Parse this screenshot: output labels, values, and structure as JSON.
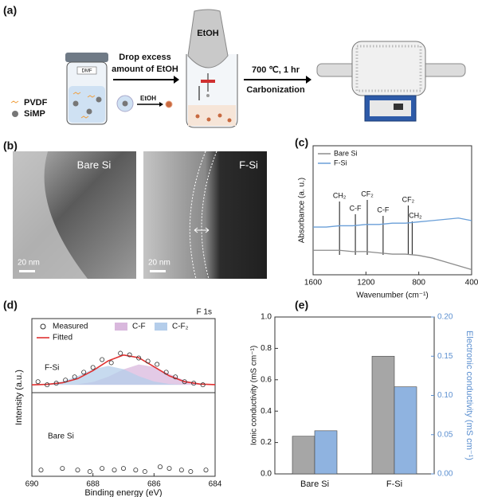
{
  "panel_labels": [
    "(a)",
    "(b)",
    "(c)",
    "(d)",
    "(e)"
  ],
  "diagram": {
    "vial": "DMF",
    "legend_pvdf": "PVDF",
    "legend_simp": "SiMP",
    "step1_line1": "Drop excess",
    "step1_line2": "amount of EtOH",
    "small_etoh": "EtOH",
    "funnel": "EtOH",
    "step2_line1": "700 ℃, 1 hr",
    "step2_line2": "Carbonization"
  },
  "tem": [
    {
      "label": "Bare Si",
      "scale": "20 nm"
    },
    {
      "label": "F-Si",
      "scale": "20 nm"
    }
  ],
  "chart_data": [
    {
      "type": "line",
      "xlabel": "Wavenumber (cm⁻¹)",
      "ylabel": "Absorbance (a. u.)",
      "xlim": [
        1600,
        400
      ],
      "xticks": [
        1600,
        1200,
        800,
        400
      ],
      "ylim": [
        0,
        1
      ],
      "x": [
        1600,
        1500,
        1400,
        1300,
        1200,
        1100,
        1000,
        900,
        800,
        700,
        600,
        500,
        400
      ],
      "series": [
        {
          "name": "Bare Si",
          "color": "#8c8c8c",
          "values": [
            0.19,
            0.19,
            0.19,
            0.18,
            0.18,
            0.17,
            0.16,
            0.16,
            0.15,
            0.13,
            0.1,
            0.07,
            0.04
          ]
        },
        {
          "name": "F-Si",
          "color": "#6a9fd8",
          "values": [
            0.37,
            0.37,
            0.38,
            0.38,
            0.39,
            0.39,
            0.4,
            0.4,
            0.41,
            0.42,
            0.43,
            0.44,
            0.42
          ]
        }
      ],
      "annotations": [
        {
          "x": 1400,
          "text": "CH₂"
        },
        {
          "x": 1280,
          "text": "C-F"
        },
        {
          "x": 1190,
          "text": "CF₂"
        },
        {
          "x": 1070,
          "text": "C-F"
        },
        {
          "x": 880,
          "text": "CF₂"
        },
        {
          "x": 850,
          "text": "CH₂"
        }
      ],
      "legend": "upper left"
    },
    {
      "type": "xps",
      "xlabel": "Binding energy (eV)",
      "ylabel": "Intensity (a.u.)",
      "annotation": "F 1s",
      "panel_texts": [
        "F-Si",
        "Bare Si"
      ],
      "xlim": [
        690,
        684
      ],
      "xticks": [
        690,
        688,
        686,
        684
      ],
      "ylim": [
        0,
        1
      ],
      "series": [
        {
          "name": "Measured",
          "style": "markers",
          "color": "#333333",
          "x": [
            689.8,
            689.5,
            689.2,
            688.9,
            688.6,
            688.3,
            688.0,
            687.7,
            687.4,
            687.1,
            686.8,
            686.5,
            686.2,
            685.9,
            685.6,
            685.3,
            685.0,
            684.7,
            684.4,
            689.7,
            689.0,
            688.5,
            688.1,
            687.7,
            687.3,
            687.0,
            686.6,
            686.3,
            685.8,
            685.5,
            685.1,
            684.8,
            684.3
          ],
          "values": [
            0.6,
            0.58,
            0.59,
            0.61,
            0.63,
            0.66,
            0.69,
            0.74,
            0.72,
            0.78,
            0.77,
            0.75,
            0.73,
            0.71,
            0.66,
            0.63,
            0.6,
            0.59,
            0.58,
            0.04,
            0.05,
            0.04,
            0.03,
            0.05,
            0.04,
            0.05,
            0.04,
            0.03,
            0.06,
            0.05,
            0.04,
            0.03,
            0.04
          ]
        },
        {
          "name": "C-F",
          "style": "area",
          "color": "#d9b8dd",
          "x": [
            690,
            689.5,
            689,
            688.5,
            688,
            687.5,
            687,
            686.5,
            686,
            685.5,
            685,
            684.5,
            684
          ],
          "values": [
            0.58,
            0.58,
            0.581,
            0.584,
            0.598,
            0.631,
            0.678,
            0.709,
            0.694,
            0.649,
            0.608,
            0.588,
            0.581
          ]
        },
        {
          "name": "C-F₂",
          "style": "area",
          "color": "#b4cdea",
          "x": [
            690,
            689.5,
            689,
            688.5,
            688,
            687.5,
            687,
            686.5,
            686,
            685.5,
            685,
            684.5,
            684
          ],
          "values": [
            0.581,
            0.585,
            0.601,
            0.635,
            0.679,
            0.7,
            0.679,
            0.635,
            0.601,
            0.585,
            0.581,
            0.58,
            0.58
          ]
        },
        {
          "name": "Fitted",
          "style": "line",
          "color": "#e03030",
          "x": [
            690,
            689.5,
            689,
            688.5,
            688,
            687.5,
            687,
            686.5,
            686,
            685.5,
            685,
            684.5,
            684
          ],
          "values": [
            0.58,
            0.583,
            0.593,
            0.619,
            0.67,
            0.732,
            0.769,
            0.752,
            0.695,
            0.637,
            0.6,
            0.585,
            0.581
          ]
        }
      ]
    },
    {
      "type": "bar",
      "categories": [
        "Bare Si",
        "F-Si"
      ],
      "ylabel": "Ionic conductivity (mS cm⁻¹)",
      "y2label": "Electronic conductivity (mS cm⁻¹)",
      "ylim": [
        0,
        1
      ],
      "yticks": [
        {
          "value": 0,
          "label": "0.0"
        },
        0.2,
        0.4,
        0.6,
        0.8,
        {
          "value": 1,
          "label": "1.0"
        }
      ],
      "y2lim": [
        0,
        0.2
      ],
      "y2ticks": [
        {
          "value": 0,
          "label": "0.00"
        },
        0.05,
        {
          "value": 0.1,
          "label": "0.10"
        },
        0.15,
        {
          "value": 0.2,
          "label": "0.20"
        }
      ],
      "y2color": "#5b8fd0",
      "series": [
        {
          "color": "#a6a6a6",
          "values": [
            0.24,
            0.75
          ]
        },
        {
          "color": "#8fb3e0",
          "axis": "y2",
          "values": [
            0.055,
            0.111
          ]
        }
      ]
    }
  ]
}
